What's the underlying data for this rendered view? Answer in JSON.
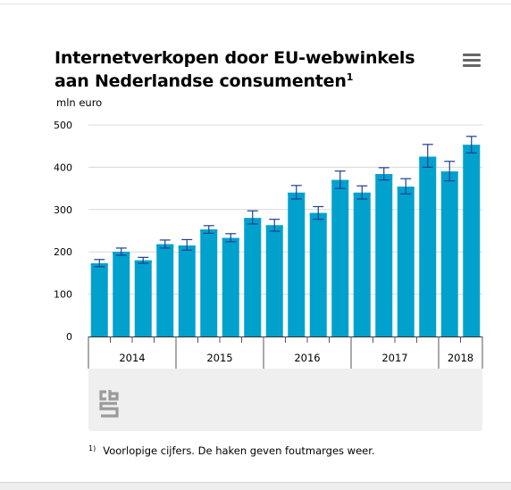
{
  "header": {
    "title": "Internetverkopen door EU-webwinkels aan Nederlandse consumenten",
    "title_superscript": "1",
    "menu_icon": "hamburger-menu-icon"
  },
  "footnote": {
    "marker": "1)",
    "text": "Voorlopige cijfers. De haken geven foutmarges weer."
  },
  "logo": {
    "icon": "cbs-logo-icon"
  },
  "colors": {
    "bar": "#00a1cd",
    "bar_top": "#00a1cd",
    "error_bar": "#1f3f8f",
    "grid": "#d9d9d9",
    "panel": "#efefef"
  },
  "chart_data": {
    "type": "bar",
    "title": "Internetverkopen door EU-webwinkels aan Nederlandse consumenten",
    "ylabel": "mln euro",
    "ylim": [
      0,
      500
    ],
    "yticks": [
      0,
      100,
      200,
      300,
      400,
      500
    ],
    "grid": true,
    "legend": "none",
    "years": [
      "2014",
      "2015",
      "2016",
      "2017",
      "2018"
    ],
    "categories": [
      "2014 Q1",
      "2014 Q2",
      "2014 Q3",
      "2014 Q4",
      "2015 Q1",
      "2015 Q2",
      "2015 Q3",
      "2015 Q4",
      "2016 Q1",
      "2016 Q2",
      "2016 Q3",
      "2016 Q4",
      "2017 Q1",
      "2017 Q2",
      "2017 Q3",
      "2017 Q4",
      "2018 Q1",
      "2018 Q2"
    ],
    "values": [
      173,
      200,
      180,
      218,
      215,
      253,
      233,
      280,
      263,
      340,
      292,
      370,
      340,
      384,
      354,
      425,
      390,
      453
    ],
    "error_low": [
      165,
      192,
      173,
      209,
      204,
      244,
      224,
      266,
      249,
      325,
      277,
      350,
      325,
      370,
      337,
      400,
      368,
      434
    ],
    "error_high": [
      182,
      209,
      187,
      228,
      229,
      262,
      243,
      297,
      277,
      357,
      307,
      391,
      356,
      399,
      373,
      454,
      414,
      473
    ]
  }
}
